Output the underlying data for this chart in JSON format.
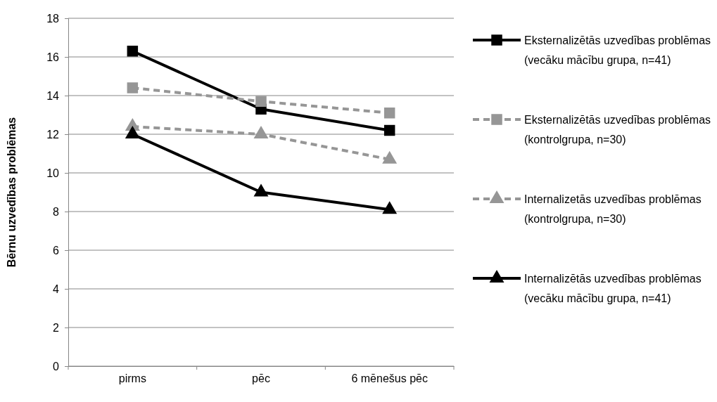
{
  "chart_data": {
    "type": "line",
    "ylabel": "Bērnu uzvedības problēmas",
    "categories": [
      "pirms",
      "pēc",
      "6 mēnešus pēc"
    ],
    "ylim": [
      0,
      18
    ],
    "yticks": [
      0,
      2,
      4,
      6,
      8,
      10,
      12,
      14,
      16,
      18
    ],
    "grid": "y",
    "legend": "right",
    "series": [
      {
        "name": "Eksternalizētās uzvedības problēmas (vecāku mācību grupa, n=41)",
        "color": "#000000",
        "marker": "square",
        "line_style": "solid",
        "values": [
          16.3,
          13.3,
          12.2
        ]
      },
      {
        "name": "Eksternalizētās uzvedības problēmas (kontrolgrupa, n=30)",
        "color": "#969696",
        "marker": "square",
        "line_style": "dashed",
        "values": [
          14.4,
          13.7,
          13.1
        ]
      },
      {
        "name": "Internalizetās uzvedības problēmas (kontrolgrupa, n=30)",
        "color": "#969696",
        "marker": "triangle",
        "line_style": "dashed",
        "values": [
          12.4,
          12.0,
          10.7
        ]
      },
      {
        "name": "Internalizētās uzvedības problēmas (vecāku mācību grupa, n=41)",
        "color": "#000000",
        "marker": "triangle",
        "line_style": "solid",
        "values": [
          12.0,
          9.0,
          8.1
        ]
      }
    ]
  }
}
